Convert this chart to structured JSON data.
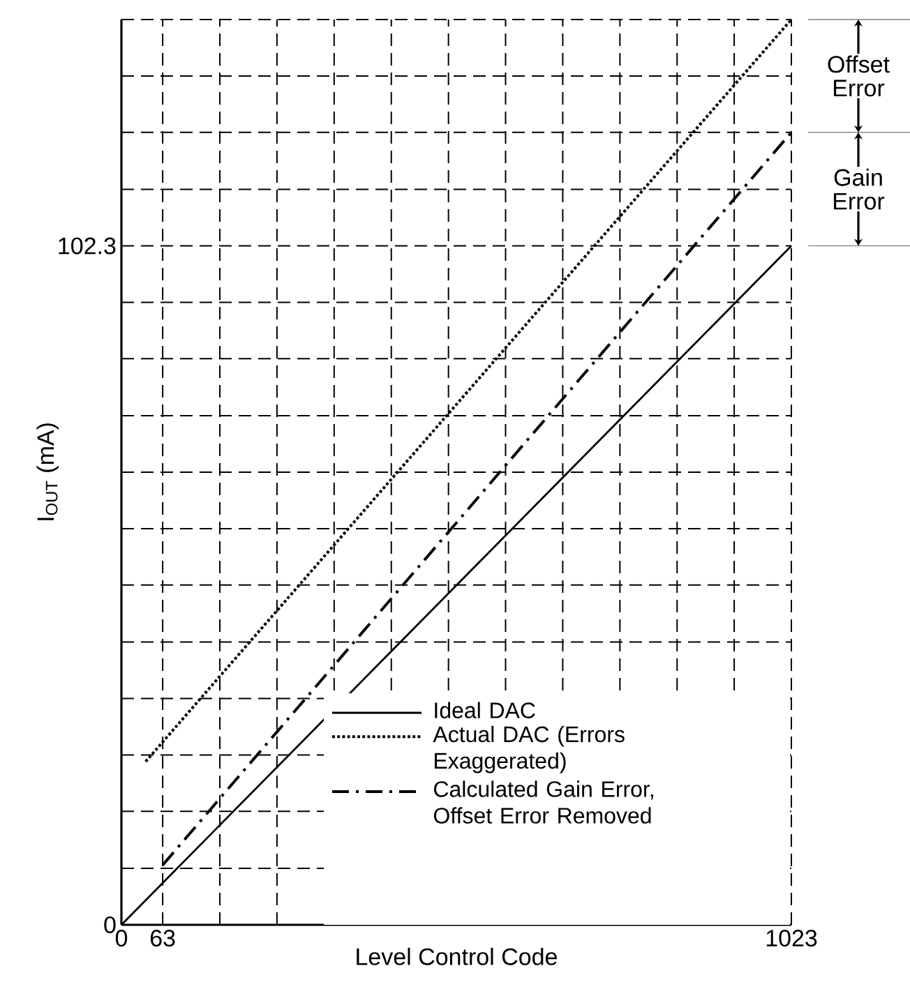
{
  "chart_data": {
    "type": "line",
    "xlabel": "Level Control Code",
    "ylabel": "I$_{OUT}$ (mA)",
    "xlim": [
      0,
      1023
    ],
    "ylim": [
      0,
      136.4
    ],
    "xticks": [
      0,
      63,
      {
        "value": 150.3,
        "label": null
      },
      {
        "value": 237.5,
        "label": null
      },
      {
        "value": 324.8,
        "label": null
      },
      {
        "value": 412.1,
        "label": null
      },
      {
        "value": 499.4,
        "label": null
      },
      {
        "value": 586.6,
        "label": null
      },
      {
        "value": 673.9,
        "label": null
      },
      {
        "value": 761.2,
        "label": null
      },
      {
        "value": 848.5,
        "label": null
      },
      {
        "value": 935.7,
        "label": null
      },
      1023
    ],
    "yticks": [
      0,
      {
        "value": 8.5,
        "label": null
      },
      {
        "value": 17.1,
        "label": null
      },
      {
        "value": 25.6,
        "label": null
      },
      {
        "value": 34.1,
        "label": null
      },
      {
        "value": 42.6,
        "label": null
      },
      {
        "value": 51.2,
        "label": null
      },
      {
        "value": 59.7,
        "label": null
      },
      {
        "value": 68.2,
        "label": null
      },
      {
        "value": 76.7,
        "label": null
      },
      {
        "value": 85.3,
        "label": null
      },
      {
        "value": 93.8,
        "label": null
      },
      102.3,
      {
        "value": 110.8,
        "label": null
      },
      {
        "value": 119.4,
        "label": null
      },
      {
        "value": 127.9,
        "label": null
      },
      {
        "value": 136.4,
        "label": null
      }
    ],
    "grid": true,
    "legend": "bottom right",
    "marker": "none",
    "series": [
      {
        "name": "Ideal DAC",
        "color": "#000000",
        "line_style": "solid",
        "x": [
          0,
          1023
        ],
        "values": [
          0,
          102.3
        ]
      },
      {
        "name": "Actual DAC (Errors Exaggerated)",
        "color": "#000000",
        "line_style": "dotted",
        "x": [
          37,
          1023
        ],
        "values": [
          24.6,
          136.4
        ]
      },
      {
        "name": "Calculated Gain Error, Offset Error Removed",
        "color": "#000000",
        "line_style": "dashdot",
        "x": [
          63,
          1023
        ],
        "values": [
          9.0,
          119.4
        ]
      }
    ],
    "annotations": [
      "Offset Error",
      "Gain Error"
    ]
  }
}
